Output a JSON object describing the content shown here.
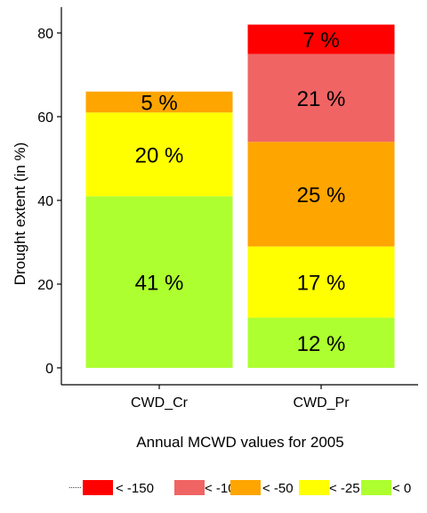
{
  "chart_data": {
    "type": "bar",
    "stacked": true,
    "title": "",
    "xlabel": "Annual MCWD values for 2005",
    "ylabel": "Drought extent (in %)",
    "ylim": [
      0,
      86
    ],
    "yticks": [
      0,
      20,
      40,
      60,
      80
    ],
    "grid": false,
    "legend_position": "bottom",
    "categories": [
      "CWD_Cr",
      "CWD_Pr"
    ],
    "series": [
      {
        "name": "< 0",
        "color": "#adff2f",
        "values": [
          41,
          12
        ],
        "labels": [
          "41 %",
          "12 %"
        ]
      },
      {
        "name": "< -25",
        "color": "#ffff00",
        "values": [
          20,
          17
        ],
        "labels": [
          "20 %",
          "17 %"
        ]
      },
      {
        "name": "< -50",
        "color": "#ffa500",
        "values": [
          5,
          25
        ],
        "labels": [
          "5 %",
          "25 %"
        ]
      },
      {
        "name": "< -100",
        "color": "#f06464",
        "values": [
          0,
          21
        ],
        "labels": [
          "",
          "21 %"
        ]
      },
      {
        "name": "< -150",
        "color": "#ff0000",
        "values": [
          0,
          7
        ],
        "labels": [
          "",
          "7 %"
        ]
      }
    ],
    "legend_order": [
      "< -150",
      "< -100",
      "< -50",
      "< -25",
      "< 0"
    ]
  }
}
